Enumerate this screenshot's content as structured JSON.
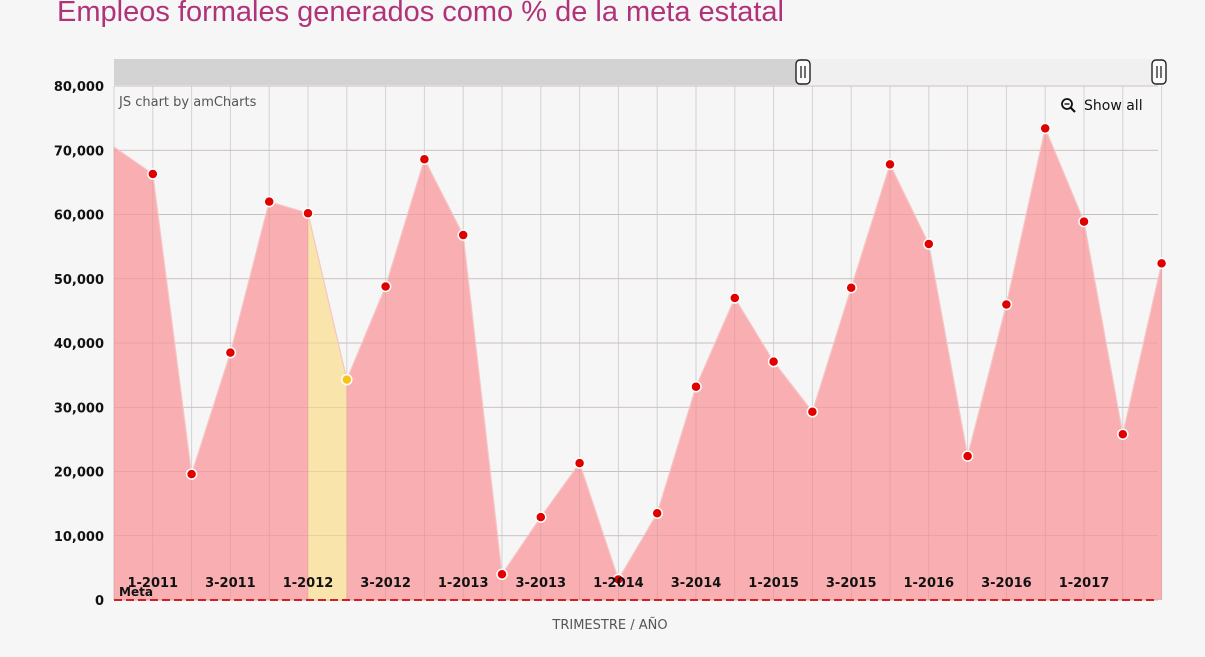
{
  "chart_data": {
    "type": "area",
    "title": "Empleos formales generados como % de la meta estatal",
    "xlabel": "TRIMESTRE / AÑO",
    "ylabel": "",
    "ylim": [
      0,
      80000
    ],
    "yticks": [
      0,
      10000,
      20000,
      30000,
      40000,
      50000,
      60000,
      70000,
      80000
    ],
    "ytick_labels": [
      "0",
      "10,000",
      "20,000",
      "30,000",
      "40,000",
      "50,000",
      "60,000",
      "70,000",
      "80,000"
    ],
    "xtick_labels": [
      "1-2011",
      "3-2011",
      "1-2012",
      "3-2012",
      "1-2013",
      "3-2013",
      "1-2014",
      "3-2014",
      "1-2015",
      "3-2015",
      "1-2016",
      "3-2016",
      "1-2017"
    ],
    "grid": true,
    "credit": "JS chart by amCharts",
    "show_all_label": "Show all",
    "series": [
      {
        "name": "",
        "color": "#f9a8aa",
        "point_color": "#e00000",
        "highlight_color": "#f9e4ab",
        "highlight_point_color": "#f7c21a",
        "values": [
          70500,
          66300,
          19600,
          38500,
          62000,
          60200,
          34300,
          48800,
          68600,
          56800,
          4000,
          12900,
          21300,
          3200,
          13500,
          33200,
          47000,
          37100,
          29300,
          48600,
          67800,
          55400,
          22400,
          46000,
          73400,
          58900,
          25800,
          52400
        ],
        "highlight_index": 6
      }
    ],
    "guide": {
      "label": "Meta",
      "value": 0,
      "color": "#cc2222"
    }
  }
}
